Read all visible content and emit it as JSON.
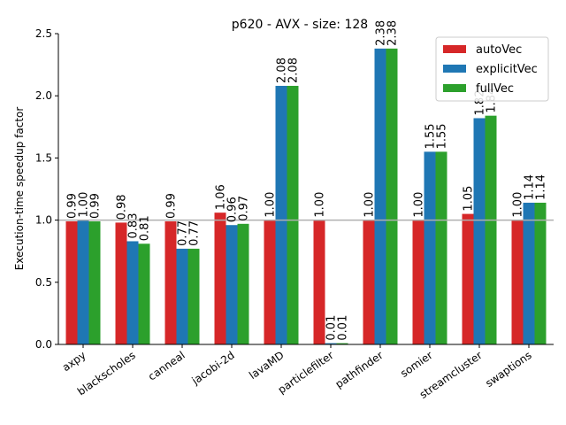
{
  "chart_data": {
    "type": "bar",
    "title": "p620 - AVX - size: 128",
    "xlabel": "",
    "ylabel": "Execution-time speedup factor",
    "ylim": [
      0,
      2.5
    ],
    "yticks": [
      "0.0",
      "0.5",
      "1.0",
      "1.5",
      "2.0",
      "2.5"
    ],
    "reference_line": 1.0,
    "grid": false,
    "legend_position": "top-right",
    "categories": [
      "axpy",
      "blackscholes",
      "canneal",
      "jacobi-2d",
      "lavaMD",
      "particlefilter",
      "pathfinder",
      "somier",
      "streamcluster",
      "swaptions"
    ],
    "series": [
      {
        "name": "autoVec",
        "color": "#d62728",
        "values": [
          0.99,
          0.98,
          0.99,
          1.06,
          1.0,
          1.0,
          1.0,
          1.0,
          1.05,
          1.0
        ],
        "labels": [
          "0.99",
          "0.98",
          "0.99",
          "1.06",
          "1.00",
          "1.00",
          "1.00",
          "1.00",
          "1.05",
          "1.00"
        ]
      },
      {
        "name": "explicitVec",
        "color": "#1f77b4",
        "values": [
          1.0,
          0.83,
          0.77,
          0.96,
          2.08,
          0.01,
          2.38,
          1.55,
          1.82,
          1.14
        ],
        "labels": [
          "1.00",
          "0.83",
          "0.77",
          "0.96",
          "2.08",
          "0.01",
          "2.38",
          "1.55",
          "1.82",
          "1.14"
        ]
      },
      {
        "name": "fullVec",
        "color": "#2ca02c",
        "values": [
          0.99,
          0.81,
          0.77,
          0.97,
          2.08,
          0.01,
          2.38,
          1.55,
          1.84,
          1.14
        ],
        "labels": [
          "0.99",
          "0.81",
          "0.77",
          "0.97",
          "2.08",
          "0.01",
          "2.38",
          "1.55",
          "1.84",
          "1.14"
        ]
      }
    ]
  }
}
